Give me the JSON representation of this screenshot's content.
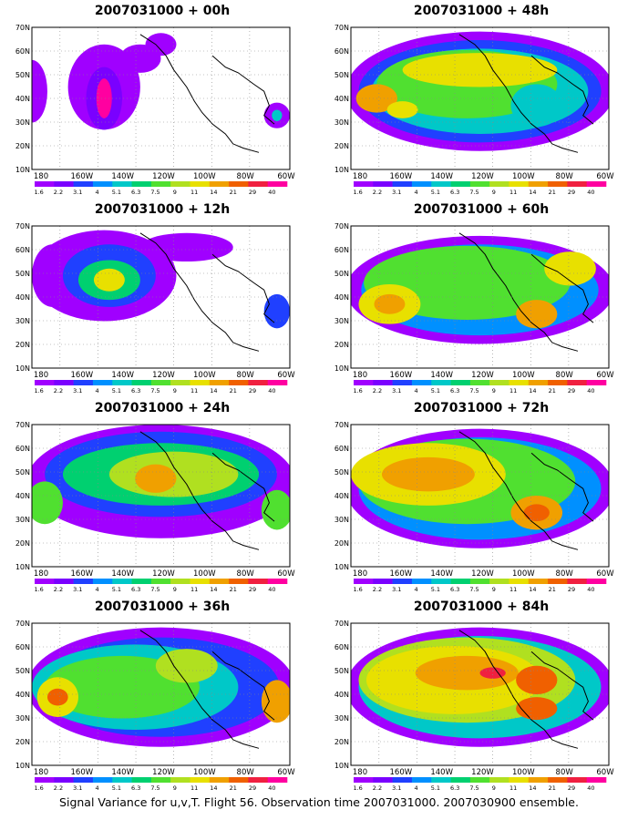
{
  "panels": [
    {
      "title": "2007031000 + 00h"
    },
    {
      "title": "2007031000 + 48h"
    },
    {
      "title": "2007031000 + 12h"
    },
    {
      "title": "2007031000 + 60h"
    },
    {
      "title": "2007031000 + 24h"
    },
    {
      "title": "2007031000 + 72h"
    },
    {
      "title": "2007031000 + 36h"
    },
    {
      "title": "2007031000 + 84h"
    }
  ],
  "lat_labels": [
    "70N",
    "60N",
    "50N",
    "40N",
    "30N",
    "20N",
    "10N"
  ],
  "lon_labels": [
    "180",
    "160W",
    "140W",
    "120W",
    "100W",
    "80W",
    "60W"
  ],
  "colorbar": {
    "colors": [
      "#a000ff",
      "#7a00ff",
      "#2040ff",
      "#0090ff",
      "#00c8c8",
      "#00d070",
      "#50e030",
      "#b0e020",
      "#e8e000",
      "#f0a000",
      "#f06000",
      "#f02040",
      "#ff00a0"
    ],
    "labels": [
      "1.6",
      "2.2",
      "3.1",
      "4",
      "5.1",
      "6.3",
      "7.5",
      "9",
      "11",
      "14",
      "21",
      "29",
      "40"
    ]
  },
  "caption": "Signal Variance for u,v,T. Flight 56. Observation time 2007031000. 2007030900 ensemble."
}
